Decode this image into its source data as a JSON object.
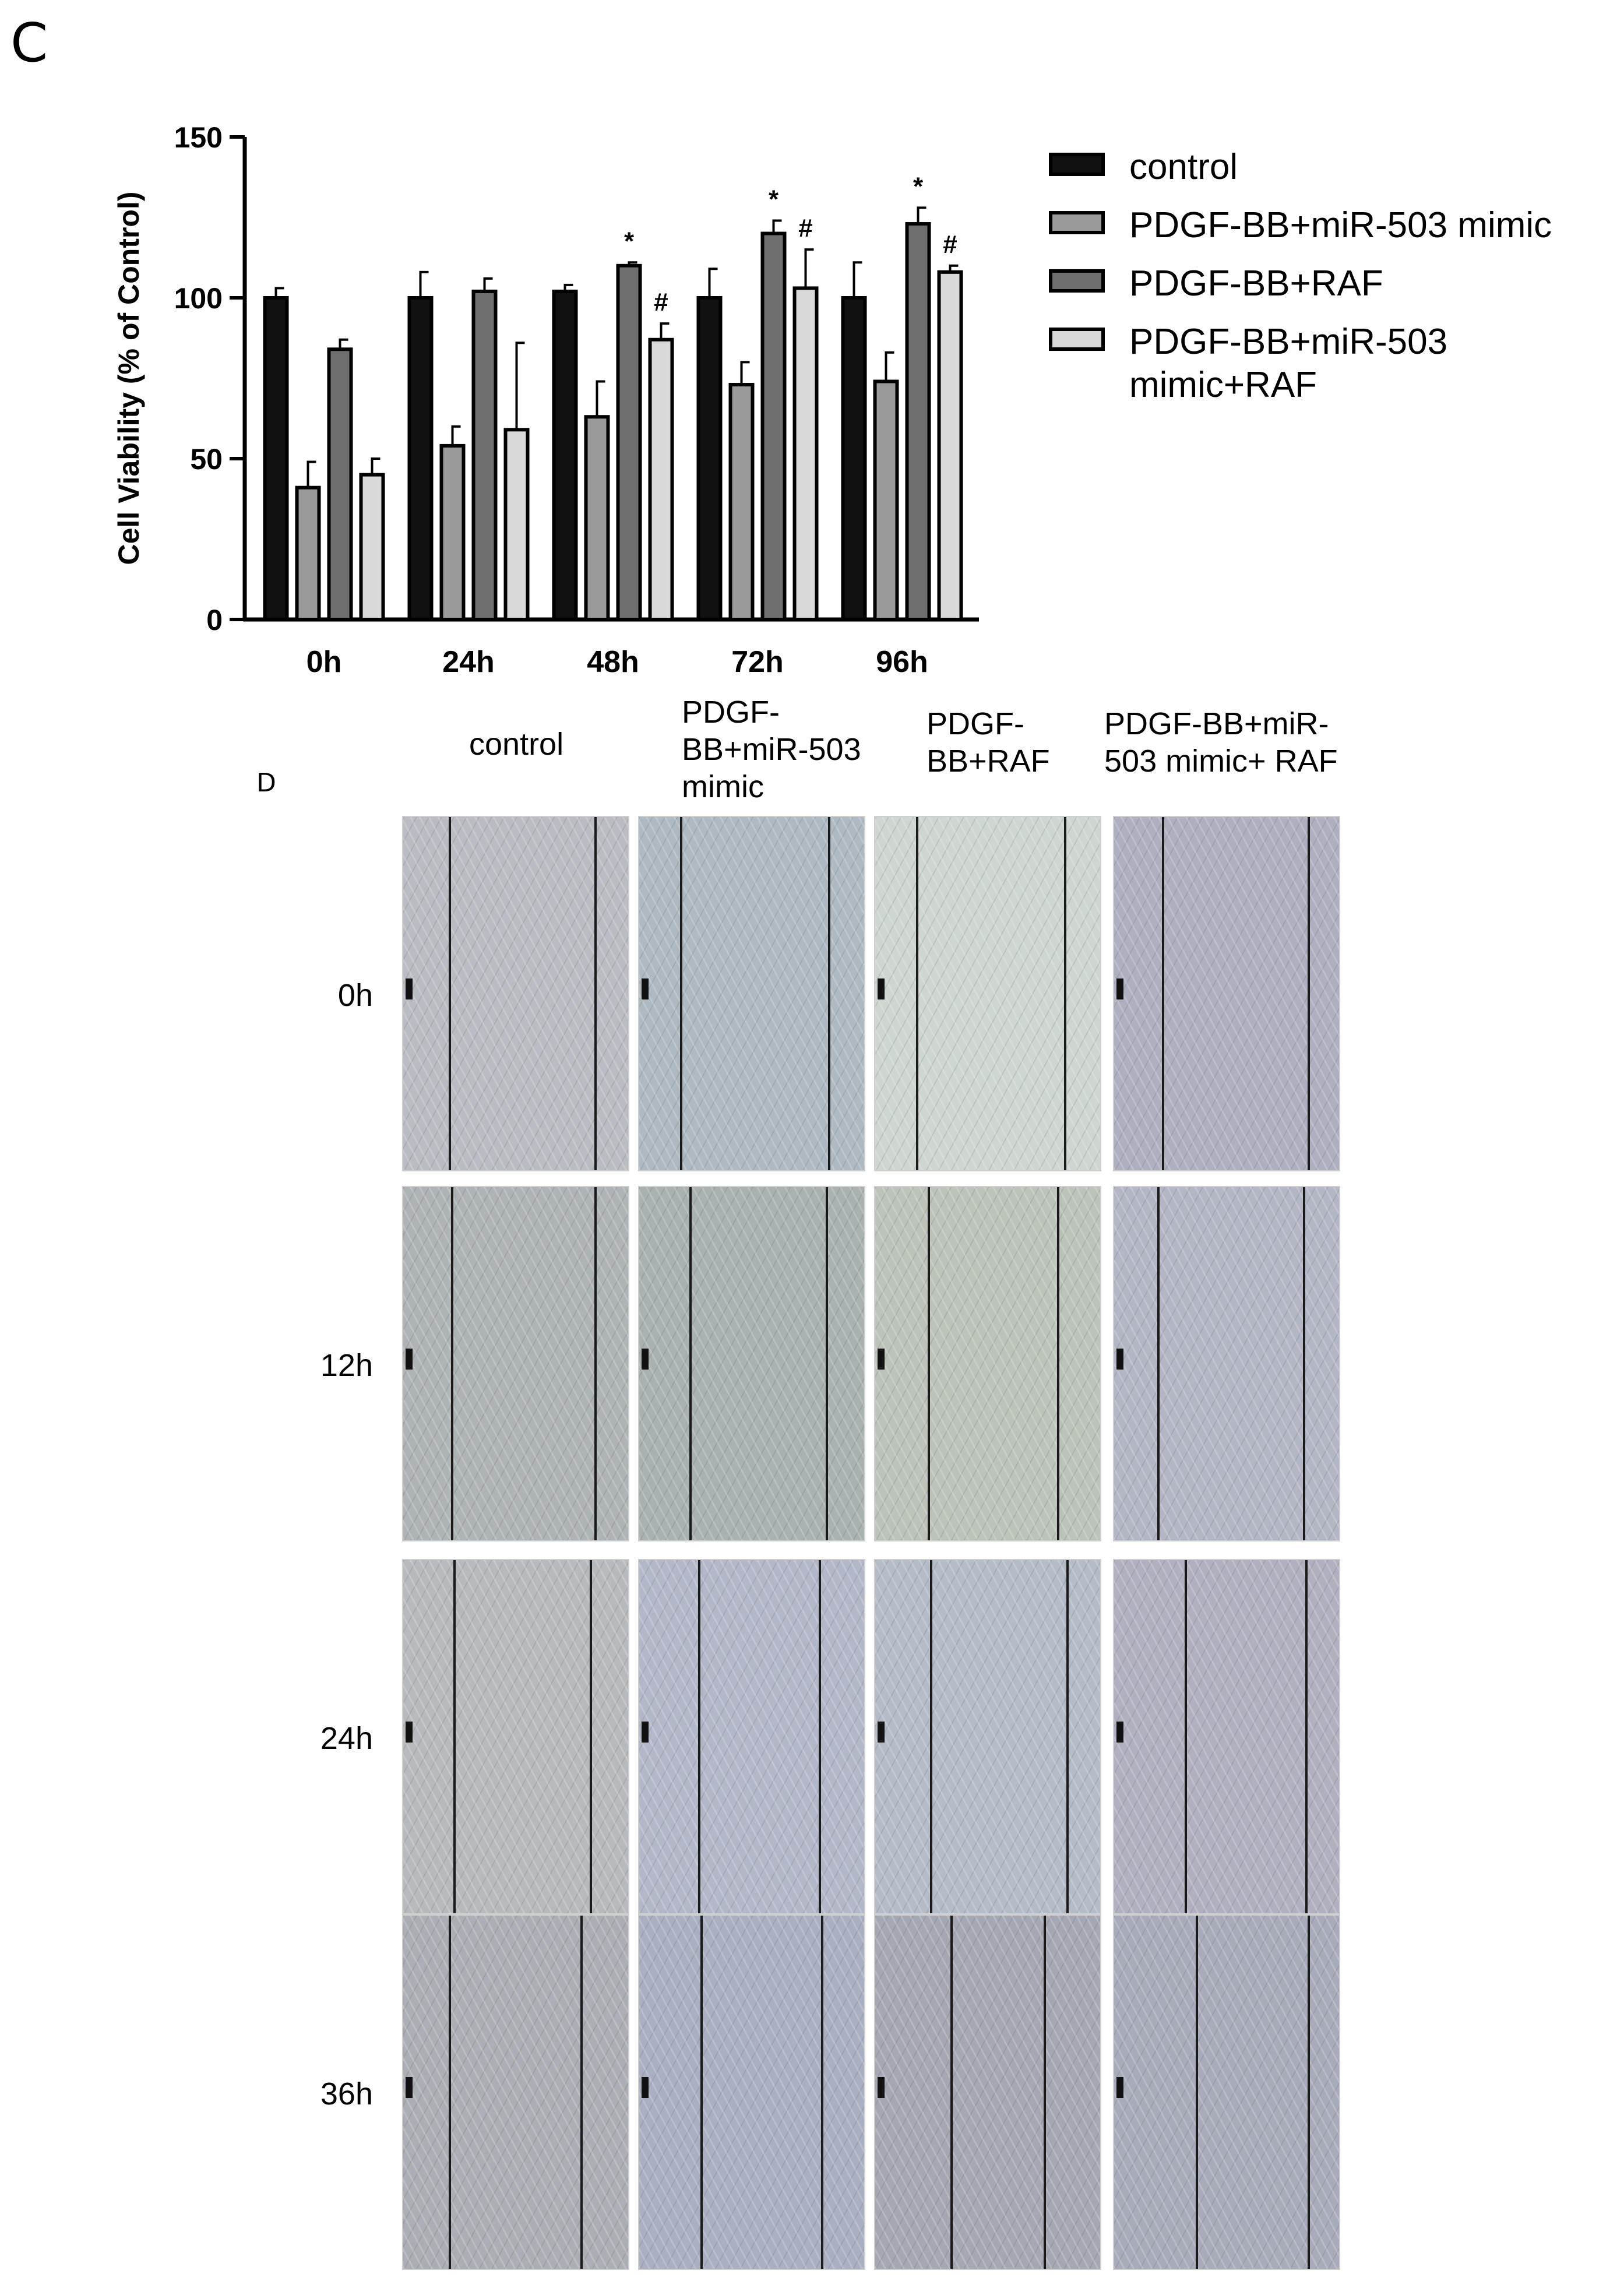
{
  "panels": {
    "c": "C",
    "d": "D"
  },
  "chart_data": {
    "type": "bar",
    "ylabel": "Cell Viability (% of Control)",
    "xlabel": "",
    "ylim": [
      0,
      150
    ],
    "yticks": [
      0,
      50,
      100,
      150
    ],
    "categories": [
      "0h",
      "24h",
      "48h",
      "72h",
      "96h"
    ],
    "series": [
      {
        "name": "control",
        "color": "#111111",
        "values": [
          100,
          100,
          102,
          100,
          100
        ],
        "errors": [
          3,
          8,
          2,
          9,
          11
        ]
      },
      {
        "name": "PDGF-BB+miR-503 mimic",
        "color": "#9a9a9a",
        "values": [
          41,
          54,
          63,
          73,
          74
        ],
        "errors": [
          8,
          6,
          11,
          7,
          9
        ]
      },
      {
        "name": "PDGF-BB+RAF",
        "color": "#6f6f6f",
        "values": [
          84,
          102,
          110,
          120,
          123
        ],
        "errors": [
          3,
          4,
          1,
          4,
          5
        ]
      },
      {
        "name": "PDGF-BB+miR-503\nmimic+RAF",
        "color": "#d9d9d9",
        "values": [
          45,
          59,
          87,
          103,
          108
        ],
        "errors": [
          5,
          27,
          5,
          12,
          2
        ]
      }
    ],
    "annotations": [
      {
        "category": "48h",
        "series": 2,
        "text": "*"
      },
      {
        "category": "48h",
        "series": 3,
        "text": "#"
      },
      {
        "category": "72h",
        "series": 2,
        "text": "*"
      },
      {
        "category": "72h",
        "series": 3,
        "text": "#"
      },
      {
        "category": "96h",
        "series": 2,
        "text": "*"
      },
      {
        "category": "96h",
        "series": 3,
        "text": "#"
      }
    ],
    "legend_position": "right"
  },
  "legend": {
    "items": [
      {
        "label": "control",
        "color": "#111111"
      },
      {
        "label": "PDGF-BB+miR-503 mimic",
        "color": "#9a9a9a"
      },
      {
        "label": "PDGF-BB+RAF",
        "color": "#6f6f6f"
      },
      {
        "label": "PDGF-BB+miR-503\nmimic+RAF",
        "color": "#d9d9d9"
      }
    ]
  },
  "wound_healing": {
    "column_headers": [
      "control",
      "PDGF-\nBB+miR-503\nmimic",
      "PDGF-\nBB+RAF",
      "PDGF-BB+miR-\n503 mimic+ RAF"
    ],
    "row_labels": [
      "0h",
      "12h",
      "24h",
      "36h"
    ],
    "image_tints": [
      [
        "#b9bcc2",
        "#aeb9c1",
        "#cdd6cf",
        "#aeb0c0"
      ],
      [
        "#aeb3b5",
        "#a9b2b1",
        "#bcc3b9",
        "#b3b6c4"
      ],
      [
        "#b7babd",
        "#b3b8c9",
        "#b4bcc7",
        "#b1b0c0"
      ],
      [
        "#abaeb4",
        "#aab0c1",
        "#a5a8b3",
        "#a8abba"
      ]
    ]
  }
}
